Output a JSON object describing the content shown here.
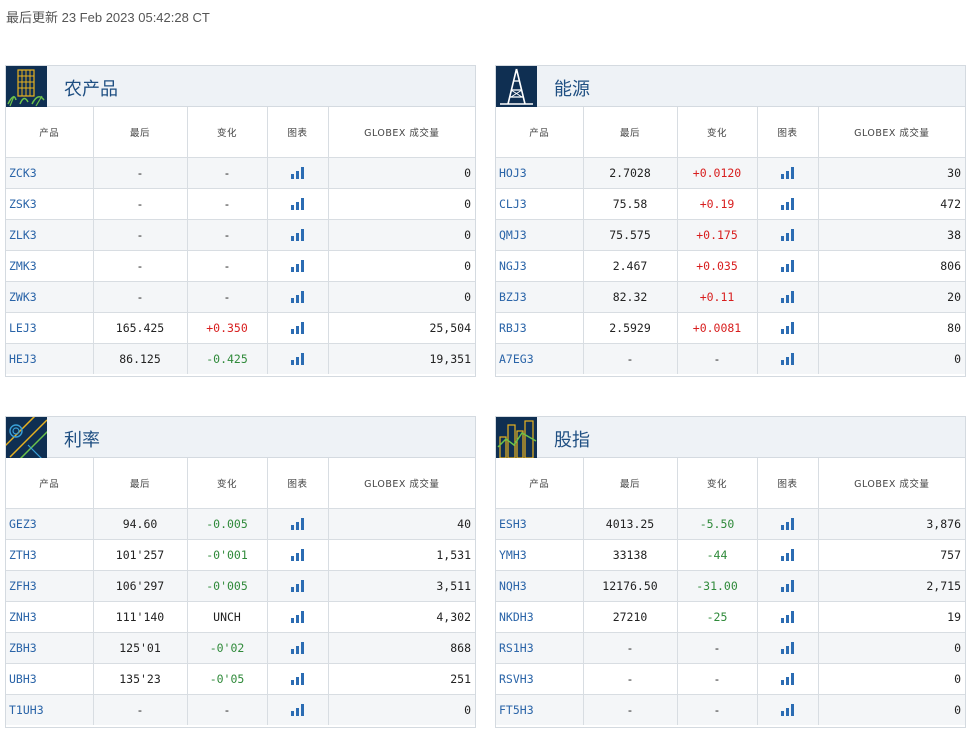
{
  "last_updated": "最后更新 23 Feb 2023 05:42:28 CT",
  "columns": {
    "product": "产品",
    "last": "最后",
    "change": "变化",
    "chart": "图表",
    "volume": "GLOBEX 成交量"
  },
  "panels": {
    "agriculture": {
      "title": "农产品",
      "icon": "wheat-grid-icon",
      "rows": [
        {
          "symbol": "ZCK3",
          "last": "-",
          "change": "-",
          "dir": "none",
          "volume": "0"
        },
        {
          "symbol": "ZSK3",
          "last": "-",
          "change": "-",
          "dir": "none",
          "volume": "0"
        },
        {
          "symbol": "ZLK3",
          "last": "-",
          "change": "-",
          "dir": "none",
          "volume": "0"
        },
        {
          "symbol": "ZMK3",
          "last": "-",
          "change": "-",
          "dir": "none",
          "volume": "0"
        },
        {
          "symbol": "ZWK3",
          "last": "-",
          "change": "-",
          "dir": "none",
          "volume": "0"
        },
        {
          "symbol": "LEJ3",
          "last": "165.425",
          "change": "+0.350",
          "dir": "pos",
          "volume": "25,504"
        },
        {
          "symbol": "HEJ3",
          "last": "86.125",
          "change": "-0.425",
          "dir": "neg",
          "volume": "19,351"
        }
      ]
    },
    "energy": {
      "title": "能源",
      "icon": "oil-derrick-icon",
      "rows": [
        {
          "symbol": "HOJ3",
          "last": "2.7028",
          "change": "+0.0120",
          "dir": "pos",
          "volume": "30"
        },
        {
          "symbol": "CLJ3",
          "last": "75.58",
          "change": "+0.19",
          "dir": "pos",
          "volume": "472"
        },
        {
          "symbol": "QMJ3",
          "last": "75.575",
          "change": "+0.175",
          "dir": "pos",
          "volume": "38"
        },
        {
          "symbol": "NGJ3",
          "last": "2.467",
          "change": "+0.035",
          "dir": "pos",
          "volume": "806"
        },
        {
          "symbol": "BZJ3",
          "last": "82.32",
          "change": "+0.11",
          "dir": "pos",
          "volume": "20"
        },
        {
          "symbol": "RBJ3",
          "last": "2.5929",
          "change": "+0.0081",
          "dir": "pos",
          "volume": "80"
        },
        {
          "symbol": "A7EG3",
          "last": "-",
          "change": "-",
          "dir": "none",
          "volume": "0"
        }
      ]
    },
    "interest_rates": {
      "title": "利率",
      "icon": "interest-rate-lines-icon",
      "rows": [
        {
          "symbol": "GEZ3",
          "last": "94.60",
          "change": "-0.005",
          "dir": "neg",
          "volume": "40"
        },
        {
          "symbol": "ZTH3",
          "last": "101'257",
          "change": "-0'001",
          "dir": "neg",
          "volume": "1,531"
        },
        {
          "symbol": "ZFH3",
          "last": "106'297",
          "change": "-0'005",
          "dir": "neg",
          "volume": "3,511"
        },
        {
          "symbol": "ZNH3",
          "last": "111'140",
          "change": "UNCH",
          "dir": "none",
          "volume": "4,302"
        },
        {
          "symbol": "ZBH3",
          "last": "125'01",
          "change": "-0'02",
          "dir": "neg",
          "volume": "868"
        },
        {
          "symbol": "UBH3",
          "last": "135'23",
          "change": "-0'05",
          "dir": "neg",
          "volume": "251"
        },
        {
          "symbol": "T1UH3",
          "last": "-",
          "change": "-",
          "dir": "none",
          "volume": "0"
        }
      ]
    },
    "equity_index": {
      "title": "股指",
      "icon": "city-skyline-icon",
      "rows": [
        {
          "symbol": "ESH3",
          "last": "4013.25",
          "change": "-5.50",
          "dir": "neg",
          "volume": "3,876"
        },
        {
          "symbol": "YMH3",
          "last": "33138",
          "change": "-44",
          "dir": "neg",
          "volume": "757"
        },
        {
          "symbol": "NQH3",
          "last": "12176.50",
          "change": "-31.00",
          "dir": "neg",
          "volume": "2,715"
        },
        {
          "symbol": "NKDH3",
          "last": "27210",
          "change": "-25",
          "dir": "neg",
          "volume": "19"
        },
        {
          "symbol": "RS1H3",
          "last": "-",
          "change": "-",
          "dir": "none",
          "volume": "0"
        },
        {
          "symbol": "RSVH3",
          "last": "-",
          "change": "-",
          "dir": "none",
          "volume": "0"
        },
        {
          "symbol": "FT5H3",
          "last": "-",
          "change": "-",
          "dir": "none",
          "volume": "0"
        }
      ]
    }
  },
  "colors": {
    "positive": "#d81e1e",
    "negative": "#2f8a3a",
    "symbol_link": "#2a64a8",
    "title": "#1f4f82"
  }
}
